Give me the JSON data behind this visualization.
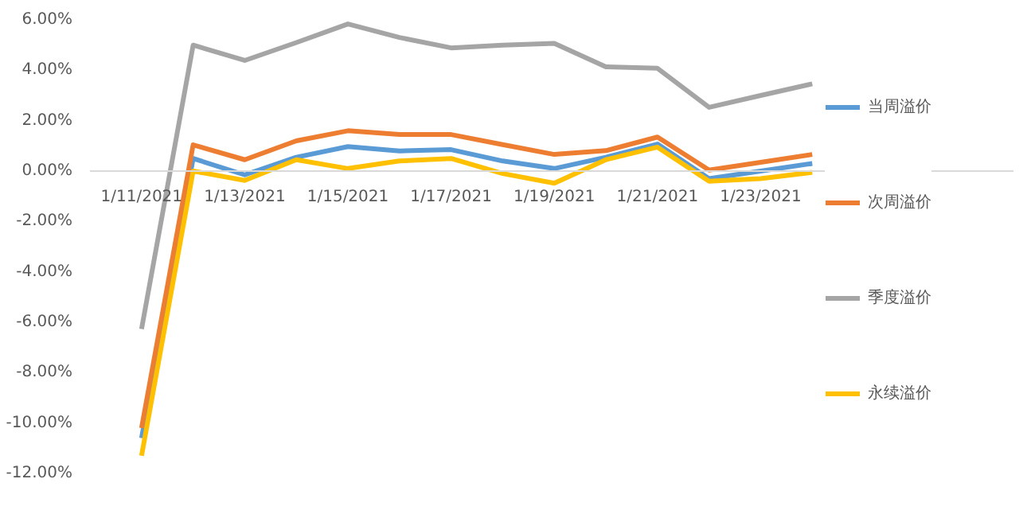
{
  "chart_data": {
    "type": "line",
    "categories": [
      "1/11/2021",
      null,
      "1/13/2021",
      null,
      "1/15/2021",
      null,
      "1/17/2021",
      null,
      "1/19/2021",
      null,
      "1/21/2021",
      null,
      "1/23/2021",
      null
    ],
    "series": [
      {
        "name": "当周溢价",
        "color": "#5b9bd5",
        "values": [
          -10.6,
          0.5,
          -0.15,
          0.55,
          0.97,
          0.8,
          0.85,
          0.4,
          0.1,
          0.55,
          1.07,
          -0.3,
          0.0,
          0.3
        ]
      },
      {
        "name": "次周溢价",
        "color": "#ed7d31",
        "values": [
          -10.2,
          1.04,
          0.45,
          1.2,
          1.6,
          1.45,
          1.45,
          1.05,
          0.66,
          0.81,
          1.35,
          0.04,
          0.35,
          0.66
        ]
      },
      {
        "name": "季度溢价",
        "color": "#a5a5a5",
        "values": [
          -6.27,
          5.0,
          4.39,
          5.1,
          5.84,
          5.3,
          4.89,
          5.0,
          5.07,
          4.14,
          4.08,
          2.53,
          3.0,
          3.46
        ]
      },
      {
        "name": "永续溢价",
        "color": "#ffc000",
        "values": [
          -11.3,
          0.0,
          -0.37,
          0.45,
          0.1,
          0.4,
          0.5,
          -0.1,
          -0.48,
          0.45,
          0.95,
          -0.4,
          -0.3,
          -0.05
        ]
      }
    ],
    "ylim": [
      -12,
      6
    ],
    "yticks": [
      {
        "value": -12,
        "label": "-12.00%"
      },
      {
        "value": -10,
        "label": "-10.00%"
      },
      {
        "value": -8,
        "label": "-8.00%"
      },
      {
        "value": -6,
        "label": "-6.00%"
      },
      {
        "value": -4,
        "label": "-4.00%"
      },
      {
        "value": -2,
        "label": "-2.00%"
      },
      {
        "value": 0,
        "label": "0.00%"
      },
      {
        "value": 2,
        "label": "2.00%"
      },
      {
        "value": 4,
        "label": "4.00%"
      },
      {
        "value": 6,
        "label": "6.00%"
      }
    ],
    "grid": false,
    "legend": "right",
    "marker": "none",
    "line_style": "solid"
  }
}
